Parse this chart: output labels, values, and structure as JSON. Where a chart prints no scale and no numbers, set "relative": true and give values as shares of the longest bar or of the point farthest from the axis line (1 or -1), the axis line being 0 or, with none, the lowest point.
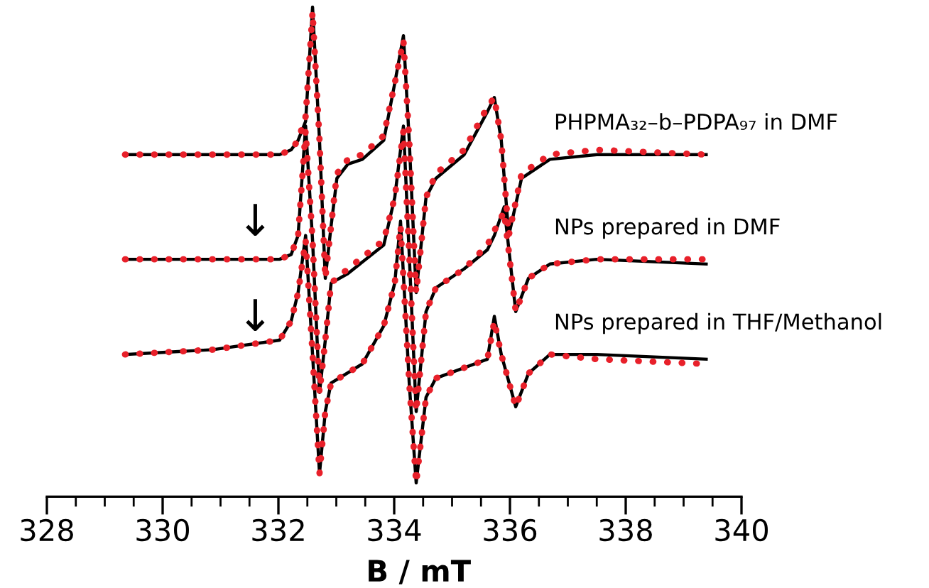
{
  "chart_data": {
    "type": "line",
    "relative": true,
    "xlabel": "B / mT",
    "xlim": [
      328,
      340
    ],
    "xticks": [
      328,
      {
        "value": 328.5,
        "label": null
      },
      {
        "value": 329,
        "label": null
      },
      {
        "value": 329.5,
        "label": null
      },
      330,
      {
        "value": 330.5,
        "label": null
      },
      {
        "value": 331,
        "label": null
      },
      {
        "value": 331.5,
        "label": null
      },
      332,
      {
        "value": 332.5,
        "label": null
      },
      {
        "value": 333,
        "label": null
      },
      {
        "value": 333.5,
        "label": null
      },
      334,
      {
        "value": 334.5,
        "label": null
      },
      {
        "value": 335,
        "label": null
      },
      {
        "value": 335.5,
        "label": null
      },
      336,
      {
        "value": 336.5,
        "label": null
      },
      {
        "value": 337,
        "label": null
      },
      {
        "value": 337.5,
        "label": null
      },
      338,
      {
        "value": 338.5,
        "label": null
      },
      {
        "value": 339,
        "label": null
      },
      {
        "value": 339.5,
        "label": null
      },
      340
    ],
    "tick_labels": "x",
    "grid": false,
    "legend": false,
    "series": [
      {
        "color": "#000000",
        "line_style": "solid",
        "x": [
          329.35,
          330.87,
          332.02,
          332.22,
          332.34,
          332.47,
          332.59,
          332.71,
          332.81,
          332.91,
          333.01,
          333.2,
          333.45,
          333.82,
          334.01,
          334.16,
          334.26,
          334.38,
          334.55,
          334.72,
          335.21,
          335.61,
          335.73,
          335.85,
          335.98,
          336.2,
          336.69,
          337.5,
          339.39
        ],
        "values": [
          0.69,
          0.69,
          0.69,
          0.7,
          0.72,
          0.76,
          1.0,
          0.72,
          0.43,
          0.54,
          0.64,
          0.67,
          0.68,
          0.72,
          0.84,
          0.94,
          0.72,
          0.4,
          0.6,
          0.64,
          0.69,
          0.78,
          0.81,
          0.72,
          0.52,
          0.64,
          0.68,
          0.69,
          0.69
        ]
      },
      {
        "color": "#e8202a",
        "line_style": "dotted",
        "x": [
          329.35,
          330.87,
          332.02,
          332.22,
          332.34,
          332.47,
          332.59,
          332.71,
          332.81,
          332.91,
          333.01,
          333.2,
          333.45,
          333.82,
          334.01,
          334.16,
          334.26,
          334.38,
          334.55,
          334.72,
          335.21,
          335.61,
          335.73,
          335.85,
          335.98,
          336.2,
          336.69,
          337.5,
          339.39
        ],
        "values": [
          0.69,
          0.69,
          0.69,
          0.7,
          0.72,
          0.77,
          0.99,
          0.72,
          0.43,
          0.54,
          0.65,
          0.68,
          0.69,
          0.73,
          0.84,
          0.93,
          0.72,
          0.4,
          0.6,
          0.65,
          0.7,
          0.79,
          0.81,
          0.72,
          0.52,
          0.65,
          0.69,
          0.7,
          0.69
        ]
      },
      {
        "color": "#000000",
        "line_style": "solid",
        "x": [
          329.35,
          330.87,
          332.02,
          332.22,
          332.34,
          332.47,
          332.59,
          332.71,
          332.81,
          332.91,
          333.2,
          333.82,
          334.01,
          334.16,
          334.26,
          334.38,
          334.55,
          334.72,
          335.21,
          335.61,
          335.73,
          335.9,
          336.1,
          336.32,
          336.69,
          337.5,
          339.39
        ],
        "values": [
          0.47,
          0.47,
          0.47,
          0.48,
          0.52,
          0.75,
          0.51,
          0.19,
          0.3,
          0.42,
          0.44,
          0.5,
          0.6,
          0.75,
          0.48,
          0.15,
          0.36,
          0.41,
          0.45,
          0.49,
          0.52,
          0.58,
          0.36,
          0.43,
          0.46,
          0.47,
          0.46
        ]
      },
      {
        "color": "#e8202a",
        "line_style": "dotted",
        "x": [
          329.35,
          330.87,
          332.02,
          332.22,
          332.34,
          332.47,
          332.59,
          332.71,
          332.81,
          332.91,
          333.2,
          333.82,
          334.01,
          334.16,
          334.26,
          334.38,
          334.55,
          334.72,
          335.21,
          335.61,
          335.73,
          335.9,
          336.1,
          336.32,
          336.69,
          337.5,
          339.39
        ],
        "values": [
          0.47,
          0.47,
          0.47,
          0.48,
          0.52,
          0.74,
          0.51,
          0.19,
          0.3,
          0.42,
          0.45,
          0.51,
          0.6,
          0.74,
          0.48,
          0.15,
          0.36,
          0.41,
          0.45,
          0.5,
          0.53,
          0.57,
          0.36,
          0.43,
          0.46,
          0.47,
          0.47
        ]
      },
      {
        "color": "#000000",
        "line_style": "solid",
        "x": [
          329.35,
          330.87,
          332.02,
          332.22,
          332.34,
          332.47,
          332.59,
          332.71,
          332.81,
          332.91,
          333.45,
          333.82,
          334.01,
          334.11,
          334.26,
          334.38,
          334.55,
          334.72,
          335.61,
          335.73,
          335.85,
          336.1,
          336.32,
          336.69,
          337.5,
          339.39
        ],
        "values": [
          0.27,
          0.28,
          0.3,
          0.34,
          0.4,
          0.52,
          0.27,
          0.02,
          0.15,
          0.21,
          0.25,
          0.33,
          0.42,
          0.55,
          0.21,
          0.0,
          0.18,
          0.22,
          0.26,
          0.35,
          0.27,
          0.16,
          0.23,
          0.27,
          0.27,
          0.26
        ]
      },
      {
        "color": "#e8202a",
        "line_style": "dotted",
        "x": [
          329.35,
          330.87,
          332.02,
          332.22,
          332.34,
          332.47,
          332.59,
          332.71,
          332.81,
          332.91,
          333.45,
          333.82,
          334.01,
          334.11,
          334.26,
          334.38,
          334.55,
          334.72,
          335.61,
          335.73,
          335.85,
          336.1,
          336.32,
          336.69,
          337.5,
          339.39
        ],
        "values": [
          0.27,
          0.28,
          0.3,
          0.34,
          0.4,
          0.51,
          0.27,
          0.02,
          0.15,
          0.21,
          0.25,
          0.33,
          0.42,
          0.54,
          0.21,
          0.0,
          0.18,
          0.22,
          0.26,
          0.34,
          0.27,
          0.16,
          0.23,
          0.27,
          0.26,
          0.25
        ]
      }
    ],
    "annotations": [
      "PHPMA₃₂–b–PDPA₉₇ in DMF",
      "NPs prepared in DMF",
      "NPs prepared in THF/Methanol",
      "↓",
      "↓"
    ]
  }
}
